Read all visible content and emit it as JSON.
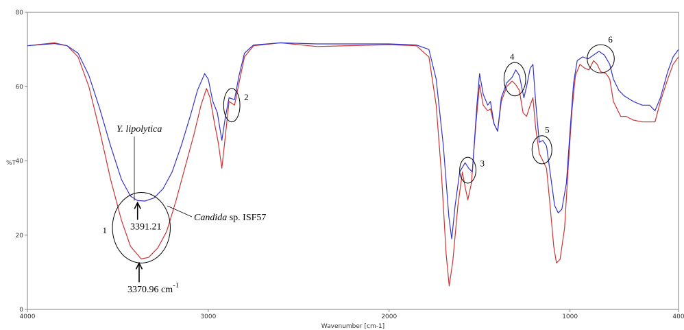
{
  "chart_data": {
    "type": "line",
    "title": "",
    "xlabel": "Wavenumber [cm-1]",
    "ylabel": "%T",
    "xlim": [
      4000,
      400
    ],
    "ylim": [
      0,
      80
    ],
    "x_reversed": true,
    "xticks": [
      4000,
      3000,
      2000,
      1000,
      400
    ],
    "xtick_labels": [
      "4000",
      "3000",
      "2000",
      "1000",
      "400"
    ],
    "yticks": [
      0,
      20,
      40,
      60,
      80
    ],
    "ytick_labels": [
      "0",
      "20",
      "40",
      "60",
      "80"
    ],
    "grid": false,
    "series": [
      {
        "name": "Y. lipolytica",
        "color": "#3333cc",
        "points": [
          [
            4000,
            71
          ],
          [
            3850,
            71.6
          ],
          [
            3780,
            71
          ],
          [
            3720,
            69
          ],
          [
            3660,
            63
          ],
          [
            3600,
            54
          ],
          [
            3540,
            44
          ],
          [
            3480,
            35
          ],
          [
            3430,
            30.5
          ],
          [
            3391,
            29.3
          ],
          [
            3350,
            29.2
          ],
          [
            3300,
            30
          ],
          [
            3250,
            32.5
          ],
          [
            3200,
            37
          ],
          [
            3150,
            44
          ],
          [
            3100,
            52
          ],
          [
            3060,
            59
          ],
          [
            3020,
            63.5
          ],
          [
            3000,
            62
          ],
          [
            2975,
            56
          ],
          [
            2950,
            53
          ],
          [
            2925,
            45.5
          ],
          [
            2905,
            52
          ],
          [
            2885,
            57
          ],
          [
            2855,
            56.5
          ],
          [
            2830,
            63
          ],
          [
            2800,
            69
          ],
          [
            2750,
            71.2
          ],
          [
            2600,
            71.8
          ],
          [
            2400,
            71.5
          ],
          [
            2000,
            71.5
          ],
          [
            1850,
            71.2
          ],
          [
            1780,
            70
          ],
          [
            1740,
            62
          ],
          [
            1700,
            44
          ],
          [
            1670,
            25
          ],
          [
            1654,
            19
          ],
          [
            1635,
            28
          ],
          [
            1610,
            37
          ],
          [
            1580,
            39.5
          ],
          [
            1560,
            38
          ],
          [
            1540,
            37
          ],
          [
            1515,
            55
          ],
          [
            1500,
            63.5
          ],
          [
            1480,
            58
          ],
          [
            1455,
            55
          ],
          [
            1440,
            56
          ],
          [
            1420,
            50
          ],
          [
            1400,
            48
          ],
          [
            1380,
            57
          ],
          [
            1350,
            61
          ],
          [
            1320,
            62.5
          ],
          [
            1300,
            64.5
          ],
          [
            1280,
            63
          ],
          [
            1255,
            57
          ],
          [
            1240,
            60
          ],
          [
            1220,
            65
          ],
          [
            1205,
            66
          ],
          [
            1190,
            56
          ],
          [
            1170,
            45
          ],
          [
            1150,
            45.5
          ],
          [
            1130,
            44
          ],
          [
            1110,
            37
          ],
          [
            1085,
            28
          ],
          [
            1065,
            26
          ],
          [
            1045,
            27
          ],
          [
            1020,
            34
          ],
          [
            1000,
            48
          ],
          [
            980,
            61
          ],
          [
            960,
            67
          ],
          [
            930,
            68
          ],
          [
            900,
            67.5
          ],
          [
            870,
            68.5
          ],
          [
            840,
            69.5
          ],
          [
            810,
            68.5
          ],
          [
            780,
            66
          ],
          [
            760,
            62
          ],
          [
            730,
            59
          ],
          [
            700,
            57.5
          ],
          [
            650,
            56
          ],
          [
            600,
            55
          ],
          [
            560,
            55
          ],
          [
            530,
            53.5
          ],
          [
            500,
            57
          ],
          [
            460,
            64
          ],
          [
            430,
            68
          ],
          [
            400,
            70
          ]
        ]
      },
      {
        "name": "Candida sp. ISF57",
        "color": "#cc3333",
        "points": [
          [
            4000,
            71
          ],
          [
            3850,
            71.8
          ],
          [
            3780,
            71
          ],
          [
            3720,
            68
          ],
          [
            3660,
            60
          ],
          [
            3600,
            48
          ],
          [
            3540,
            35
          ],
          [
            3480,
            24
          ],
          [
            3430,
            17
          ],
          [
            3371,
            13.6
          ],
          [
            3330,
            14
          ],
          [
            3280,
            16.5
          ],
          [
            3230,
            21
          ],
          [
            3180,
            29
          ],
          [
            3130,
            38
          ],
          [
            3080,
            47
          ],
          [
            3040,
            55
          ],
          [
            3010,
            59.5
          ],
          [
            2990,
            57
          ],
          [
            2965,
            50
          ],
          [
            2945,
            45
          ],
          [
            2925,
            38
          ],
          [
            2905,
            47
          ],
          [
            2885,
            56
          ],
          [
            2855,
            55
          ],
          [
            2830,
            61
          ],
          [
            2800,
            68
          ],
          [
            2750,
            71
          ],
          [
            2600,
            71.8
          ],
          [
            2400,
            70.8
          ],
          [
            2000,
            71.3
          ],
          [
            1850,
            71
          ],
          [
            1780,
            68
          ],
          [
            1740,
            55
          ],
          [
            1710,
            36
          ],
          [
            1685,
            15
          ],
          [
            1668,
            6.3
          ],
          [
            1648,
            13
          ],
          [
            1620,
            28
          ],
          [
            1595,
            37
          ],
          [
            1580,
            33
          ],
          [
            1565,
            29.5
          ],
          [
            1545,
            34
          ],
          [
            1520,
            50
          ],
          [
            1500,
            60.5
          ],
          [
            1480,
            55
          ],
          [
            1455,
            53.5
          ],
          [
            1440,
            54
          ],
          [
            1420,
            50
          ],
          [
            1400,
            48
          ],
          [
            1380,
            56
          ],
          [
            1350,
            60
          ],
          [
            1320,
            61.5
          ],
          [
            1300,
            60.5
          ],
          [
            1280,
            59
          ],
          [
            1260,
            53
          ],
          [
            1240,
            52
          ],
          [
            1220,
            55
          ],
          [
            1205,
            57
          ],
          [
            1190,
            49
          ],
          [
            1170,
            42
          ],
          [
            1150,
            40
          ],
          [
            1130,
            38
          ],
          [
            1110,
            28
          ],
          [
            1090,
            17
          ],
          [
            1075,
            12.5
          ],
          [
            1055,
            13.5
          ],
          [
            1030,
            22
          ],
          [
            1010,
            38
          ],
          [
            990,
            53
          ],
          [
            970,
            63
          ],
          [
            945,
            66
          ],
          [
            920,
            65
          ],
          [
            895,
            64.5
          ],
          [
            870,
            67
          ],
          [
            850,
            66
          ],
          [
            830,
            64
          ],
          [
            800,
            63.5
          ],
          [
            780,
            62
          ],
          [
            760,
            56
          ],
          [
            740,
            54
          ],
          [
            720,
            52
          ],
          [
            690,
            52
          ],
          [
            650,
            51
          ],
          [
            600,
            50.5
          ],
          [
            560,
            50.5
          ],
          [
            530,
            50.5
          ],
          [
            500,
            56
          ],
          [
            460,
            62
          ],
          [
            430,
            66
          ],
          [
            400,
            68
          ]
        ]
      }
    ],
    "annotations": [
      {
        "text": "Y. lipolytica",
        "italic": true
      },
      {
        "text": "3391.21"
      },
      {
        "text_italic": "Candida",
        "text_rest": " sp. ISF57"
      },
      {
        "text": "3370.96",
        "unit": "cm",
        "superscript": "-1"
      }
    ],
    "markers": [
      {
        "label": "1",
        "x": 3370,
        "y": 22,
        "rx_wn": 160,
        "ry_pct": 9.5
      },
      {
        "label": "2",
        "x": 2870,
        "y": 55,
        "rx_wn": 45,
        "ry_pct": 4.5
      },
      {
        "label": "3",
        "x": 1565,
        "y": 37.5,
        "rx_wn": 45,
        "ry_pct": 3.5
      },
      {
        "label": "4",
        "x": 1305,
        "y": 62,
        "rx_wn": 60,
        "ry_pct": 4.5
      },
      {
        "label": "5",
        "x": 1155,
        "y": 43,
        "rx_wn": 55,
        "ry_pct": 3.8
      },
      {
        "label": "6",
        "x": 830,
        "y": 67.5,
        "rx_wn": 75,
        "ry_pct": 3.8
      }
    ]
  }
}
